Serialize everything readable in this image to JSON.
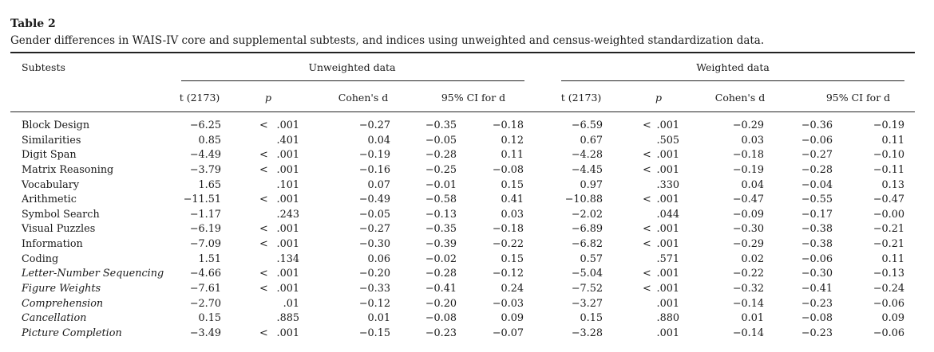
{
  "table": {
    "label": "Table 2",
    "caption": "Gender differences in WAIS-IV core and supplemental subtests, and indices using unweighted and census-weighted standardization data.",
    "stub_header": "Subtests",
    "groups": [
      "Unweighted data",
      "Weighted data"
    ],
    "subheaders": [
      "t (2173)",
      "p",
      "Cohen's d",
      "95% CI for d"
    ],
    "rows": [
      {
        "name": "Block Design",
        "italic": false,
        "u": [
          "−6.25",
          "<",
          ".001",
          "−0.27",
          "−0.35",
          "−0.18"
        ],
        "w": [
          "−6.59",
          "<",
          ".001",
          "−0.29",
          "−0.36",
          "−0.19"
        ]
      },
      {
        "name": "Similarities",
        "italic": false,
        "u": [
          "0.85",
          "",
          ".401",
          "0.04",
          "−0.05",
          "0.12"
        ],
        "w": [
          "0.67",
          "",
          ".505",
          "0.03",
          "−0.06",
          "0.11"
        ]
      },
      {
        "name": "Digit Span",
        "italic": false,
        "u": [
          "−4.49",
          "<",
          ".001",
          "−0.19",
          "−0.28",
          "0.11"
        ],
        "w": [
          "−4.28",
          "<",
          ".001",
          "−0.18",
          "−0.27",
          "−0.10"
        ]
      },
      {
        "name": "Matrix Reasoning",
        "italic": false,
        "u": [
          "−3.79",
          "<",
          ".001",
          "−0.16",
          "−0.25",
          "−0.08"
        ],
        "w": [
          "−4.45",
          "<",
          ".001",
          "−0.19",
          "−0.28",
          "−0.11"
        ]
      },
      {
        "name": "Vocabulary",
        "italic": false,
        "u": [
          "1.65",
          "",
          ".101",
          "0.07",
          "−0.01",
          "0.15"
        ],
        "w": [
          "0.97",
          "",
          ".330",
          "0.04",
          "−0.04",
          "0.13"
        ]
      },
      {
        "name": "Arithmetic",
        "italic": false,
        "u": [
          "−11.51",
          "<",
          ".001",
          "−0.49",
          "−0.58",
          "0.41"
        ],
        "w": [
          "−10.88",
          "<",
          ".001",
          "−0.47",
          "−0.55",
          "−0.47"
        ]
      },
      {
        "name": "Symbol Search",
        "italic": false,
        "u": [
          "−1.17",
          "",
          ".243",
          "−0.05",
          "−0.13",
          "0.03"
        ],
        "w": [
          "−2.02",
          "",
          ".044",
          "−0.09",
          "−0.17",
          "−0.00"
        ]
      },
      {
        "name": "Visual Puzzles",
        "italic": false,
        "u": [
          "−6.19",
          "<",
          ".001",
          "−0.27",
          "−0.35",
          "−0.18"
        ],
        "w": [
          "−6.89",
          "<",
          ".001",
          "−0.30",
          "−0.38",
          "−0.21"
        ]
      },
      {
        "name": "Information",
        "italic": false,
        "u": [
          "−7.09",
          "<",
          ".001",
          "−0.30",
          "−0.39",
          "−0.22"
        ],
        "w": [
          "−6.82",
          "<",
          ".001",
          "−0.29",
          "−0.38",
          "−0.21"
        ]
      },
      {
        "name": "Coding",
        "italic": false,
        "u": [
          "1.51",
          "",
          ".134",
          "0.06",
          "−0.02",
          "0.15"
        ],
        "w": [
          "0.57",
          "",
          ".571",
          "0.02",
          "−0.06",
          "0.11"
        ]
      },
      {
        "name": "Letter-Number Sequencing",
        "italic": true,
        "u": [
          "−4.66",
          "<",
          ".001",
          "−0.20",
          "−0.28",
          "−0.12"
        ],
        "w": [
          "−5.04",
          "<",
          ".001",
          "−0.22",
          "−0.30",
          "−0.13"
        ]
      },
      {
        "name": "Figure Weights",
        "italic": true,
        "u": [
          "−7.61",
          "<",
          ".001",
          "−0.33",
          "−0.41",
          "0.24"
        ],
        "w": [
          "−7.52",
          "<",
          ".001",
          "−0.32",
          "−0.41",
          "−0.24"
        ]
      },
      {
        "name": "Comprehension",
        "italic": true,
        "u": [
          "−2.70",
          "",
          ".01",
          "−0.12",
          "−0.20",
          "−0.03"
        ],
        "w": [
          "−3.27",
          "",
          ".001",
          "−0.14",
          "−0.23",
          "−0.06"
        ]
      },
      {
        "name": "Cancellation",
        "italic": true,
        "u": [
          "0.15",
          "",
          ".885",
          "0.01",
          "−0.08",
          "0.09"
        ],
        "w": [
          "0.15",
          "",
          ".880",
          "0.01",
          "−0.08",
          "0.09"
        ]
      },
      {
        "name": "Picture Completion",
        "italic": true,
        "u": [
          "−3.49",
          "<",
          ".001",
          "−0.15",
          "−0.23",
          "−0.07"
        ],
        "w": [
          "−3.28",
          "",
          ".001",
          "−0.14",
          "−0.23",
          "−0.06"
        ]
      }
    ]
  }
}
